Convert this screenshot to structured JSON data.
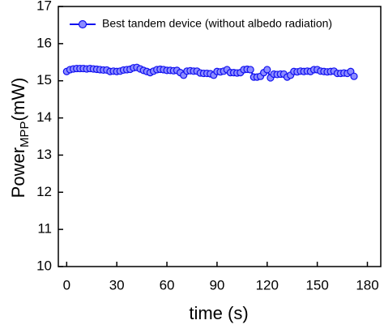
{
  "chart_data": {
    "type": "line",
    "x_label": "time (s)",
    "y_label": "Power",
    "y_label_sub": "MPP",
    "y_label_unit": "(mW)",
    "x": [
      0,
      2,
      4,
      6,
      8,
      10,
      12,
      14,
      16,
      18,
      20,
      22,
      24,
      26,
      28,
      30,
      32,
      34,
      36,
      38,
      40,
      42,
      44,
      46,
      48,
      50,
      52,
      54,
      56,
      58,
      60,
      62,
      64,
      66,
      68,
      70,
      72,
      74,
      76,
      78,
      80,
      82,
      84,
      86,
      88,
      90,
      92,
      94,
      96,
      98,
      100,
      102,
      104,
      106,
      108,
      110,
      112,
      114,
      116,
      118,
      120,
      122,
      124,
      126,
      128,
      130,
      132,
      134,
      136,
      138,
      140,
      142,
      144,
      146,
      148,
      150,
      152,
      154,
      156,
      158,
      160,
      162,
      164,
      166,
      168,
      170,
      172
    ],
    "series": [
      {
        "name": "Best tandem device (without albedo radiation)",
        "color": "#1010f0",
        "marker_fill": "#8c8cff",
        "values": [
          15.25,
          15.3,
          15.32,
          15.33,
          15.33,
          15.33,
          15.32,
          15.33,
          15.32,
          15.31,
          15.3,
          15.29,
          15.29,
          15.25,
          15.26,
          15.25,
          15.26,
          15.29,
          15.3,
          15.31,
          15.35,
          15.36,
          15.32,
          15.28,
          15.25,
          15.22,
          15.26,
          15.3,
          15.31,
          15.3,
          15.28,
          15.28,
          15.27,
          15.28,
          15.22,
          15.15,
          15.26,
          15.27,
          15.26,
          15.26,
          15.21,
          15.2,
          15.2,
          15.19,
          15.15,
          15.25,
          15.24,
          15.26,
          15.3,
          15.22,
          15.22,
          15.21,
          15.22,
          15.3,
          15.31,
          15.3,
          15.1,
          15.1,
          15.12,
          15.22,
          15.3,
          15.08,
          15.18,
          15.17,
          15.18,
          15.18,
          15.1,
          15.15,
          15.25,
          15.24,
          15.26,
          15.25,
          15.26,
          15.25,
          15.3,
          15.3,
          15.26,
          15.25,
          15.24,
          15.25,
          15.26,
          15.2,
          15.2,
          15.21,
          15.2,
          15.25,
          15.12
        ]
      }
    ],
    "xlim": [
      -5,
      188
    ],
    "ylim": [
      10,
      17
    ],
    "xticks": [
      0,
      30,
      60,
      90,
      120,
      150,
      180
    ],
    "yticks": [
      10,
      11,
      12,
      13,
      14,
      15,
      16,
      17
    ],
    "legend": "upper left"
  }
}
